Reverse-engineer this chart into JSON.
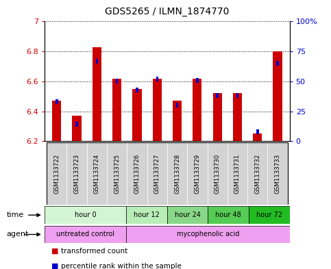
{
  "title": "GDS5265 / ILMN_1874770",
  "samples": [
    "GSM1133722",
    "GSM1133723",
    "GSM1133724",
    "GSM1133725",
    "GSM1133726",
    "GSM1133727",
    "GSM1133728",
    "GSM1133729",
    "GSM1133730",
    "GSM1133731",
    "GSM1133732",
    "GSM1133733"
  ],
  "transformed_count": [
    6.47,
    6.37,
    6.83,
    6.62,
    6.55,
    6.62,
    6.47,
    6.62,
    6.52,
    6.52,
    6.25,
    6.8
  ],
  "percentile_rank": [
    33,
    14,
    67,
    50,
    43,
    52,
    30,
    51,
    38,
    38,
    8,
    65
  ],
  "ylim_left": [
    6.2,
    7.0
  ],
  "ylim_right": [
    0,
    100
  ],
  "yticks_left": [
    6.2,
    6.4,
    6.6,
    6.8,
    7.0
  ],
  "ytick_labels_left": [
    "6.2",
    "6.4",
    "6.6",
    "6.8",
    "7"
  ],
  "yticks_right": [
    0,
    25,
    50,
    75,
    100
  ],
  "ytick_labels_right": [
    "0",
    "25",
    "50",
    "75",
    "100%"
  ],
  "bar_bottom": 6.2,
  "time_groups": [
    {
      "label": "hour 0",
      "start": 0,
      "end": 4,
      "color": "#d4f5d4"
    },
    {
      "label": "hour 12",
      "start": 4,
      "end": 6,
      "color": "#b8edb8"
    },
    {
      "label": "hour 24",
      "start": 6,
      "end": 8,
      "color": "#88d888"
    },
    {
      "label": "hour 48",
      "start": 8,
      "end": 10,
      "color": "#55cc55"
    },
    {
      "label": "hour 72",
      "start": 10,
      "end": 12,
      "color": "#22bb22"
    }
  ],
  "agent_groups": [
    {
      "label": "untreated control",
      "start": 0,
      "end": 4,
      "color": "#f0a0f0"
    },
    {
      "label": "mycophenolic acid",
      "start": 4,
      "end": 12,
      "color": "#f0a0f0"
    }
  ],
  "bar_color": "#cc0000",
  "percentile_color": "#0000cc",
  "background_color": "#ffffff",
  "sample_box_color": "#d3d3d3",
  "legend_items": [
    {
      "label": "transformed count",
      "color": "#cc0000"
    },
    {
      "label": "percentile rank within the sample",
      "color": "#0000cc"
    }
  ]
}
